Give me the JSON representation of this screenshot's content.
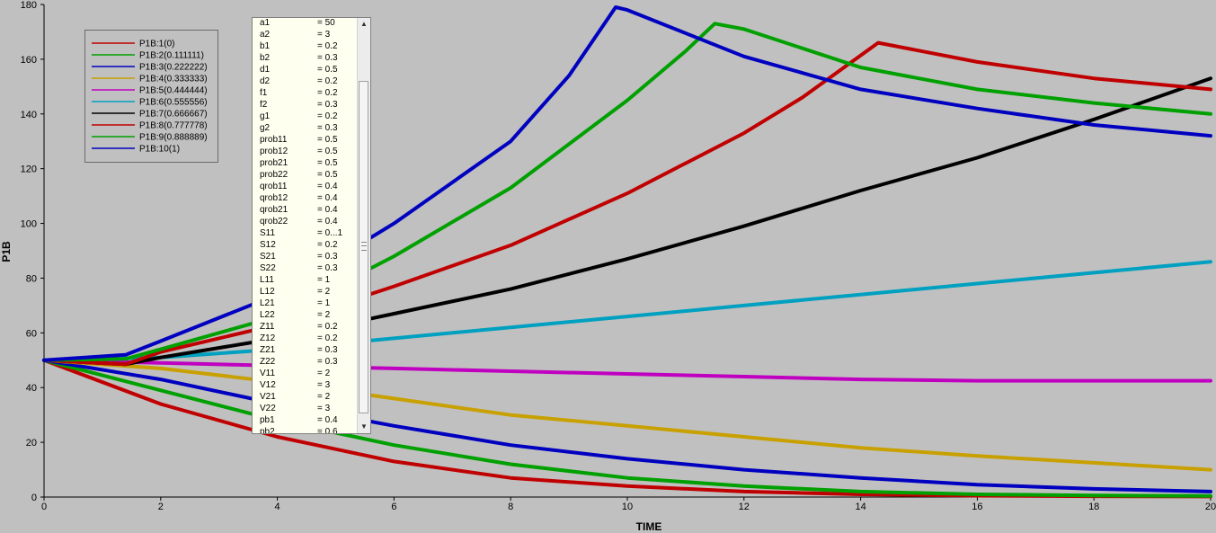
{
  "chart_data": {
    "type": "line",
    "xlabel": "TIME",
    "ylabel": "P1B",
    "xlim": [
      0,
      20
    ],
    "ylim": [
      0,
      180
    ],
    "x_ticks": [
      "0",
      "2",
      "4",
      "6",
      "8",
      "10",
      "12",
      "14",
      "16",
      "18",
      "20"
    ],
    "y_ticks": [
      "0",
      "20",
      "40",
      "60",
      "80",
      "100",
      "120",
      "140",
      "160",
      "180"
    ],
    "grid": false,
    "legend_position": "top-left",
    "series": [
      {
        "name": "P1B:1(0)",
        "color": "#c00000",
        "x": [
          0,
          2,
          4,
          6,
          8,
          10,
          12,
          14,
          16,
          18,
          20
        ],
        "y": [
          50,
          34,
          22,
          13,
          7,
          4,
          2,
          1,
          0.5,
          0.3,
          0.2
        ]
      },
      {
        "name": "P1B:2(0.111111)",
        "color": "#00a000",
        "x": [
          0,
          2,
          4,
          6,
          8,
          10,
          12,
          14,
          16,
          18,
          20
        ],
        "y": [
          50,
          39,
          28,
          19,
          12,
          7,
          4,
          2,
          1,
          0.6,
          0.4
        ]
      },
      {
        "name": "P1B:3(0.222222)",
        "color": "#0000c0",
        "x": [
          0,
          2,
          4,
          6,
          8,
          10,
          12,
          14,
          16,
          18,
          20
        ],
        "y": [
          50,
          43,
          34,
          26,
          19,
          14,
          10,
          7,
          4.5,
          3,
          2
        ]
      },
      {
        "name": "P1B:4(0.333333)",
        "color": "#c8a000",
        "x": [
          0,
          2,
          4,
          6,
          8,
          10,
          12,
          14,
          16,
          18,
          20
        ],
        "y": [
          50,
          47,
          42,
          36,
          30,
          26,
          22,
          18,
          15,
          12.5,
          10
        ]
      },
      {
        "name": "P1B:5(0.444444)",
        "color": "#c000c0",
        "x": [
          0,
          2,
          4,
          6,
          8,
          10,
          12,
          14,
          16,
          18,
          20
        ],
        "y": [
          50,
          49,
          48,
          47,
          46,
          45,
          44,
          43,
          42.5,
          42.5,
          42.5
        ]
      },
      {
        "name": "P1B:6(0.555556)",
        "color": "#00a0c0",
        "x": [
          0,
          2,
          4,
          6,
          8,
          10,
          12,
          14,
          16,
          18,
          20
        ],
        "y": [
          50,
          51,
          54,
          58,
          62,
          66,
          70,
          74,
          78,
          82,
          86
        ]
      },
      {
        "name": "P1B:7(0.666667)",
        "color": "#000000",
        "x": [
          0,
          1.4,
          2,
          4,
          6,
          8,
          10,
          12,
          14,
          16,
          18,
          20
        ],
        "y": [
          50,
          48.5,
          51,
          58,
          67,
          76,
          87,
          99,
          112,
          124,
          138,
          153
        ]
      },
      {
        "name": "P1B:8(0.777778)",
        "color": "#c00000",
        "x": [
          0,
          1.4,
          2,
          4,
          6,
          8,
          10,
          12,
          13,
          14.3,
          16,
          18,
          20
        ],
        "y": [
          50,
          48.5,
          53,
          63,
          77,
          92,
          111,
          133,
          146,
          166,
          159,
          153,
          149
        ]
      },
      {
        "name": "P1B:9(0.888889)",
        "color": "#00a000",
        "x": [
          0,
          1.4,
          2,
          4,
          6,
          8,
          10,
          11,
          11.5,
          12,
          14,
          16,
          18,
          20
        ],
        "y": [
          50,
          50.5,
          54,
          66,
          88,
          113,
          145,
          163,
          173,
          171,
          157,
          149,
          144,
          140
        ]
      },
      {
        "name": "P1B:10(1)",
        "color": "#0000c0",
        "x": [
          0,
          1.4,
          2,
          4,
          6,
          8,
          9,
          9.8,
          10,
          12,
          14,
          16,
          18,
          20
        ],
        "y": [
          50,
          52,
          57,
          74,
          100,
          130,
          154,
          179,
          178,
          161,
          149,
          142,
          136,
          132
        ]
      }
    ]
  },
  "legend": {
    "entries": [
      "P1B:1(0)",
      "P1B:2(0.111111)",
      "P1B:3(0.222222)",
      "P1B:4(0.333333)",
      "P1B:5(0.444444)",
      "P1B:6(0.555556)",
      "P1B:7(0.666667)",
      "P1B:8(0.777778)",
      "P1B:9(0.888889)",
      "P1B:10(1)"
    ]
  },
  "parameters": [
    {
      "name": "a1",
      "value": "= 50"
    },
    {
      "name": "a2",
      "value": "= 3"
    },
    {
      "name": "b1",
      "value": "= 0.2"
    },
    {
      "name": "b2",
      "value": "= 0.3"
    },
    {
      "name": "d1",
      "value": "= 0.5"
    },
    {
      "name": "d2",
      "value": "= 0.2"
    },
    {
      "name": "f1",
      "value": "= 0.2"
    },
    {
      "name": "f2",
      "value": "= 0.3"
    },
    {
      "name": "g1",
      "value": "= 0.2"
    },
    {
      "name": "g2",
      "value": "= 0.3"
    },
    {
      "name": "prob11",
      "value": "= 0.5"
    },
    {
      "name": "prob12",
      "value": "= 0.5"
    },
    {
      "name": "prob21",
      "value": "= 0.5"
    },
    {
      "name": "prob22",
      "value": "= 0.5"
    },
    {
      "name": "qrob11",
      "value": "= 0.4"
    },
    {
      "name": "qrob12",
      "value": "= 0.4"
    },
    {
      "name": "qrob21",
      "value": "= 0.4"
    },
    {
      "name": "qrob22",
      "value": "= 0.4"
    },
    {
      "name": "S11",
      "value": "= 0...1"
    },
    {
      "name": "S12",
      "value": "= 0.2"
    },
    {
      "name": "S21",
      "value": "= 0.3"
    },
    {
      "name": "S22",
      "value": "= 0.3"
    },
    {
      "name": "L11",
      "value": "= 1"
    },
    {
      "name": "L12",
      "value": "= 2"
    },
    {
      "name": "L21",
      "value": "= 1"
    },
    {
      "name": "L22",
      "value": "= 2"
    },
    {
      "name": "Z11",
      "value": "= 0.2"
    },
    {
      "name": "Z12",
      "value": "= 0.2"
    },
    {
      "name": "Z21",
      "value": "= 0.3"
    },
    {
      "name": "Z22",
      "value": "= 0.3"
    },
    {
      "name": "V11",
      "value": "= 2"
    },
    {
      "name": "V12",
      "value": "= 3"
    },
    {
      "name": "V21",
      "value": "= 2"
    },
    {
      "name": "V22",
      "value": "= 3"
    },
    {
      "name": "pb1",
      "value": "= 0.4"
    },
    {
      "name": "pb2",
      "value": "= 0.6"
    }
  ],
  "scrollbar": {
    "up_icon": "chevron-up-icon",
    "down_icon": "chevron-down-icon"
  }
}
